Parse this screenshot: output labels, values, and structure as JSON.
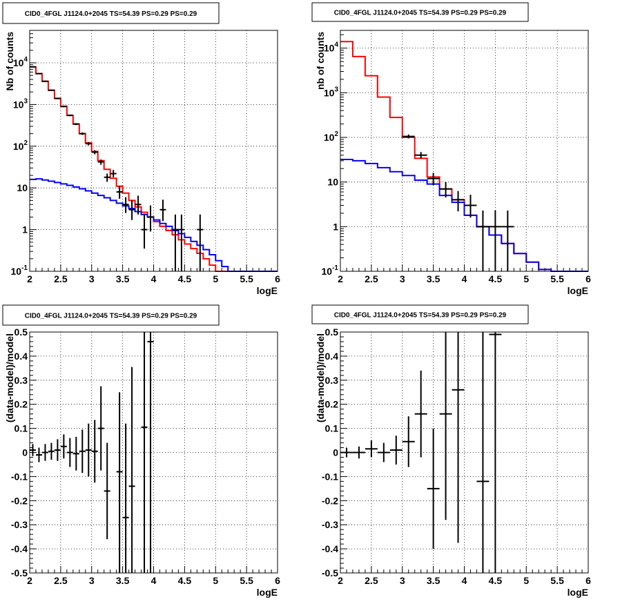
{
  "colors": {
    "model_total": "#ff0000",
    "model_background": "#0000ff",
    "data": "#000000"
  },
  "chart_data": [
    {
      "type": "line",
      "title": "CID0_4FGL J1124.0+2045 TS=54.39 PS=0.29 PS=0.29",
      "xlabel": "logE",
      "ylabel": "Nb of counts",
      "xlim": [
        2,
        6
      ],
      "ylim": [
        0.1,
        60000
      ],
      "yscale": "log",
      "xticks": [
        "2",
        "2.5",
        "3",
        "3.5",
        "4",
        "4.5",
        "5",
        "5.5",
        "6"
      ],
      "yticks": [
        "10^{-1}",
        "1",
        "10",
        "10^{2}",
        "10^{3}",
        "10^{4}"
      ],
      "grid": true,
      "bin_edges": [
        2,
        2.1,
        2.2,
        2.3,
        2.4,
        2.5,
        2.6,
        2.7,
        2.8,
        2.9,
        3.0,
        3.1,
        3.2,
        3.3,
        3.4,
        3.5,
        3.6,
        3.7,
        3.8,
        3.9,
        4.0,
        4.1,
        4.2,
        4.3,
        4.4,
        4.5,
        4.6,
        4.7,
        4.8,
        4.9,
        5.0,
        5.1,
        5.2,
        5.3,
        5.4,
        5.5,
        5.6,
        5.7,
        5.8,
        5.9,
        6.0
      ],
      "series": [
        {
          "color": "#ff0000",
          "values": [
            8000,
            5500,
            3600,
            2200,
            1400,
            900,
            550,
            340,
            200,
            120,
            75,
            45,
            28,
            17,
            11,
            7.5,
            5,
            3.5,
            2.6,
            2.0,
            1.55,
            1.2,
            0.95,
            0.75,
            0.57,
            0.45,
            0.35,
            0.27,
            0.2,
            0.14,
            0.1,
            0.1,
            0.1,
            0.1,
            0.1,
            0.1,
            0.1,
            0.1,
            0.1,
            0.1
          ]
        },
        {
          "color": "#0000ff",
          "values": [
            16,
            16.5,
            15.5,
            14.5,
            13.5,
            12.5,
            11.5,
            10.5,
            9.5,
            8.5,
            7.5,
            6.6,
            5.8,
            5.0,
            4.3,
            3.7,
            3.2,
            2.7,
            2.3,
            2.0,
            1.7,
            1.4,
            1.2,
            0.95,
            0.8,
            0.65,
            0.52,
            0.42,
            0.33,
            0.25,
            0.18,
            0.13,
            0.1,
            0.1,
            0.1,
            0.1,
            0.1,
            0.1,
            0.1,
            0.1
          ]
        }
      ],
      "points": [
        {
          "x": 2.05,
          "y": 8000,
          "ylo": 7800,
          "yhi": 8200,
          "xerr": 0.05
        },
        {
          "x": 2.15,
          "y": 5500,
          "ylo": 5350,
          "yhi": 5650,
          "xerr": 0.05
        },
        {
          "x": 2.25,
          "y": 3600,
          "ylo": 3480,
          "yhi": 3720,
          "xerr": 0.05
        },
        {
          "x": 2.35,
          "y": 2200,
          "ylo": 2110,
          "yhi": 2290,
          "xerr": 0.05
        },
        {
          "x": 2.45,
          "y": 1400,
          "ylo": 1340,
          "yhi": 1460,
          "xerr": 0.05
        },
        {
          "x": 2.55,
          "y": 900,
          "ylo": 860,
          "yhi": 940,
          "xerr": 0.05
        },
        {
          "x": 2.65,
          "y": 550,
          "ylo": 525,
          "yhi": 575,
          "xerr": 0.05
        },
        {
          "x": 2.75,
          "y": 340,
          "ylo": 322,
          "yhi": 358,
          "xerr": 0.05
        },
        {
          "x": 2.85,
          "y": 200,
          "ylo": 186,
          "yhi": 214,
          "xerr": 0.05
        },
        {
          "x": 2.95,
          "y": 115,
          "ylo": 105,
          "yhi": 126,
          "xerr": 0.05
        },
        {
          "x": 3.05,
          "y": 72,
          "ylo": 64,
          "yhi": 80,
          "xerr": 0.05
        },
        {
          "x": 3.15,
          "y": 42,
          "ylo": 36,
          "yhi": 48,
          "xerr": 0.05
        },
        {
          "x": 3.25,
          "y": 18,
          "ylo": 14,
          "yhi": 22,
          "xerr": 0.05
        },
        {
          "x": 3.35,
          "y": 22,
          "ylo": 18,
          "yhi": 27,
          "xerr": 0.05
        },
        {
          "x": 3.45,
          "y": 8,
          "ylo": 5.5,
          "yhi": 11,
          "xerr": 0.05
        },
        {
          "x": 3.55,
          "y": 4,
          "ylo": 2.5,
          "yhi": 6,
          "xerr": 0.05
        },
        {
          "x": 3.65,
          "y": 3,
          "ylo": 1.7,
          "yhi": 5,
          "xerr": 0.05
        },
        {
          "x": 3.75,
          "y": 4,
          "ylo": 2.3,
          "yhi": 6.5,
          "xerr": 0.05
        },
        {
          "x": 3.85,
          "y": 1,
          "ylo": 0.35,
          "yhi": 2.4,
          "xerr": 0.05
        },
        {
          "x": 3.95,
          "y": 2,
          "ylo": 0.9,
          "yhi": 3.8,
          "xerr": 0.05
        },
        {
          "x": 4.15,
          "y": 3,
          "ylo": 1.6,
          "yhi": 5.2,
          "xerr": 0.05
        },
        {
          "x": 4.35,
          "y": 1,
          "ylo": 0.1,
          "yhi": 2.3,
          "xerr": 0.05
        },
        {
          "x": 4.45,
          "y": 1,
          "ylo": 0.1,
          "yhi": 2.3,
          "xerr": 0.05
        },
        {
          "x": 4.75,
          "y": 1,
          "ylo": 0.1,
          "yhi": 2.3,
          "xerr": 0.05
        }
      ]
    },
    {
      "type": "line",
      "title": "CID0_4FGL J1124.0+2045 TS=54.39 PS=0.29 PS=0.29",
      "xlabel": "logE",
      "ylabel": "nb of counts",
      "xlim": [
        2,
        6
      ],
      "ylim": [
        0.1,
        25000
      ],
      "yscale": "log",
      "xticks": [
        "2",
        "2.5",
        "3",
        "3.5",
        "4",
        "4.5",
        "5",
        "5.5",
        "6"
      ],
      "yticks": [
        "10^{-1}",
        "1",
        "10",
        "10^{2}",
        "10^{3}",
        "10^{4}"
      ],
      "grid": true,
      "bin_edges": [
        2.0,
        2.2,
        2.4,
        2.6,
        2.8,
        3.0,
        3.2,
        3.4,
        3.6,
        3.8,
        4.0,
        4.2,
        4.4,
        4.6,
        4.8,
        5.0,
        5.2,
        5.4,
        5.6,
        5.8,
        6.0
      ],
      "series": [
        {
          "color": "#ff0000",
          "values": [
            14000,
            6500,
            2400,
            800,
            280,
            100,
            34,
            13,
            7,
            4,
            1.8,
            1.0,
            0.65,
            0.42,
            0.25,
            0.16,
            0.11,
            0.1,
            0.1,
            0.1
          ]
        },
        {
          "color": "#0000ff",
          "values": [
            32,
            30,
            26,
            21,
            17,
            14,
            11,
            9,
            5,
            3.5,
            1.8,
            1.0,
            0.65,
            0.42,
            0.25,
            0.16,
            0.11,
            0.1,
            0.1,
            0.1
          ]
        }
      ],
      "points": [
        {
          "x": 3.1,
          "y": 105,
          "ylo": 95,
          "yhi": 116,
          "xerr": 0.1
        },
        {
          "x": 3.3,
          "y": 40,
          "ylo": 34,
          "yhi": 47,
          "xerr": 0.1
        },
        {
          "x": 3.5,
          "y": 12,
          "ylo": 8.5,
          "yhi": 16,
          "xerr": 0.1
        },
        {
          "x": 3.7,
          "y": 7,
          "ylo": 4.5,
          "yhi": 10,
          "xerr": 0.1
        },
        {
          "x": 3.9,
          "y": 4,
          "ylo": 2.2,
          "yhi": 6.3,
          "xerr": 0.1
        },
        {
          "x": 4.1,
          "y": 3,
          "ylo": 1.6,
          "yhi": 5.2,
          "xerr": 0.1
        },
        {
          "x": 4.3,
          "y": 1,
          "ylo": 0.1,
          "yhi": 2.3,
          "xerr": 0.1
        },
        {
          "x": 4.5,
          "y": 1,
          "ylo": 0.1,
          "yhi": 2.3,
          "xerr": 0.1
        },
        {
          "x": 4.7,
          "y": 1,
          "ylo": 0.1,
          "yhi": 2.3,
          "xerr": 0.1
        }
      ]
    },
    {
      "type": "scatter",
      "title": "CID0_4FGL J1124.0+2045 TS=54.39 PS=0.29 PS=0.29",
      "xlabel": "logE",
      "ylabel": "(data-model)/model",
      "xlim": [
        2,
        6
      ],
      "ylim": [
        -0.5,
        0.5
      ],
      "yscale": "linear",
      "xticks": [
        "2",
        "2.5",
        "3",
        "3.5",
        "4",
        "4.5",
        "5",
        "5.5",
        "6"
      ],
      "yticks": [
        "-0.5",
        "-0.4",
        "-0.3",
        "-0.2",
        "-0.1",
        "0",
        "0.1",
        "0.2",
        "0.3",
        "0.4",
        "0.5"
      ],
      "grid": true,
      "points": [
        {
          "x": 2.05,
          "y": 0.01,
          "ylo": -0.015,
          "yhi": 0.035,
          "xerr": 0.05
        },
        {
          "x": 2.15,
          "y": -0.01,
          "ylo": -0.04,
          "yhi": 0.02,
          "xerr": 0.05
        },
        {
          "x": 2.25,
          "y": 0.0,
          "ylo": -0.035,
          "yhi": 0.035,
          "xerr": 0.05
        },
        {
          "x": 2.35,
          "y": 0.005,
          "ylo": -0.03,
          "yhi": 0.04,
          "xerr": 0.05
        },
        {
          "x": 2.45,
          "y": 0.01,
          "ylo": -0.035,
          "yhi": 0.055,
          "xerr": 0.05
        },
        {
          "x": 2.55,
          "y": 0.025,
          "ylo": -0.025,
          "yhi": 0.075,
          "xerr": 0.05
        },
        {
          "x": 2.65,
          "y": 0.0,
          "ylo": -0.06,
          "yhi": 0.06,
          "xerr": 0.05
        },
        {
          "x": 2.75,
          "y": -0.005,
          "ylo": -0.075,
          "yhi": 0.065,
          "xerr": 0.05
        },
        {
          "x": 2.85,
          "y": 0.005,
          "ylo": -0.085,
          "yhi": 0.095,
          "xerr": 0.05
        },
        {
          "x": 2.95,
          "y": 0.01,
          "ylo": -0.1,
          "yhi": 0.12,
          "xerr": 0.05
        },
        {
          "x": 3.05,
          "y": 0.005,
          "ylo": -0.125,
          "yhi": 0.135,
          "xerr": 0.05
        },
        {
          "x": 3.15,
          "y": 0.1,
          "ylo": -0.075,
          "yhi": 0.275,
          "xerr": 0.05
        },
        {
          "x": 3.25,
          "y": -0.16,
          "ylo": -0.36,
          "yhi": 0.04,
          "xerr": 0.05
        },
        {
          "x": 3.45,
          "y": -0.08,
          "ylo": -0.5,
          "yhi": 0.25,
          "xerr": 0.05
        },
        {
          "x": 3.55,
          "y": -0.27,
          "ylo": -0.5,
          "yhi": 0.12,
          "xerr": 0.05
        },
        {
          "x": 3.65,
          "y": -0.14,
          "ylo": -0.5,
          "yhi": 0.355,
          "xerr": 0.05
        },
        {
          "x": 3.85,
          "y": 0.105,
          "ylo": -0.5,
          "yhi": 0.5,
          "xerr": 0.05
        },
        {
          "x": 3.95,
          "y": 0.46,
          "ylo": -0.5,
          "yhi": 0.5,
          "xerr": 0.05
        }
      ]
    },
    {
      "type": "scatter",
      "title": "CID0_4FGL J1124.0+2045 TS=54.39 PS=0.29 PS=0.29",
      "xlabel": "logE",
      "ylabel": "(data-model)/model",
      "xlim": [
        2,
        6
      ],
      "ylim": [
        -0.5,
        0.5
      ],
      "yscale": "linear",
      "xticks": [
        "2",
        "2.5",
        "3",
        "3.5",
        "4",
        "4.5",
        "5",
        "5.5",
        "6"
      ],
      "yticks": [
        "-0.5",
        "-0.4",
        "-0.3",
        "-0.2",
        "-0.1",
        "0",
        "0.1",
        "0.2",
        "0.3",
        "0.4",
        "0.5"
      ],
      "grid": true,
      "points": [
        {
          "x": 2.1,
          "y": 0.0,
          "ylo": -0.02,
          "yhi": 0.02,
          "xerr": 0.1
        },
        {
          "x": 2.3,
          "y": 0.0,
          "ylo": -0.025,
          "yhi": 0.025,
          "xerr": 0.1
        },
        {
          "x": 2.5,
          "y": 0.015,
          "ylo": -0.02,
          "yhi": 0.05,
          "xerr": 0.1
        },
        {
          "x": 2.7,
          "y": 0.0,
          "ylo": -0.04,
          "yhi": 0.04,
          "xerr": 0.1
        },
        {
          "x": 2.9,
          "y": 0.01,
          "ylo": -0.05,
          "yhi": 0.07,
          "xerr": 0.1
        },
        {
          "x": 3.1,
          "y": 0.045,
          "ylo": -0.06,
          "yhi": 0.15,
          "xerr": 0.1
        },
        {
          "x": 3.3,
          "y": 0.16,
          "ylo": -0.02,
          "yhi": 0.34,
          "xerr": 0.1
        },
        {
          "x": 3.5,
          "y": -0.15,
          "ylo": -0.4,
          "yhi": 0.1,
          "xerr": 0.1
        },
        {
          "x": 3.7,
          "y": 0.16,
          "ylo": -0.28,
          "yhi": 0.5,
          "xerr": 0.1
        },
        {
          "x": 3.9,
          "y": 0.26,
          "ylo": -0.375,
          "yhi": 0.5,
          "xerr": 0.1
        },
        {
          "x": 4.3,
          "y": -0.12,
          "ylo": -0.5,
          "yhi": 0.5,
          "xerr": 0.1
        },
        {
          "x": 4.5,
          "y": 0.49,
          "ylo": -0.5,
          "yhi": 0.5,
          "xerr": 0.1
        }
      ]
    }
  ]
}
